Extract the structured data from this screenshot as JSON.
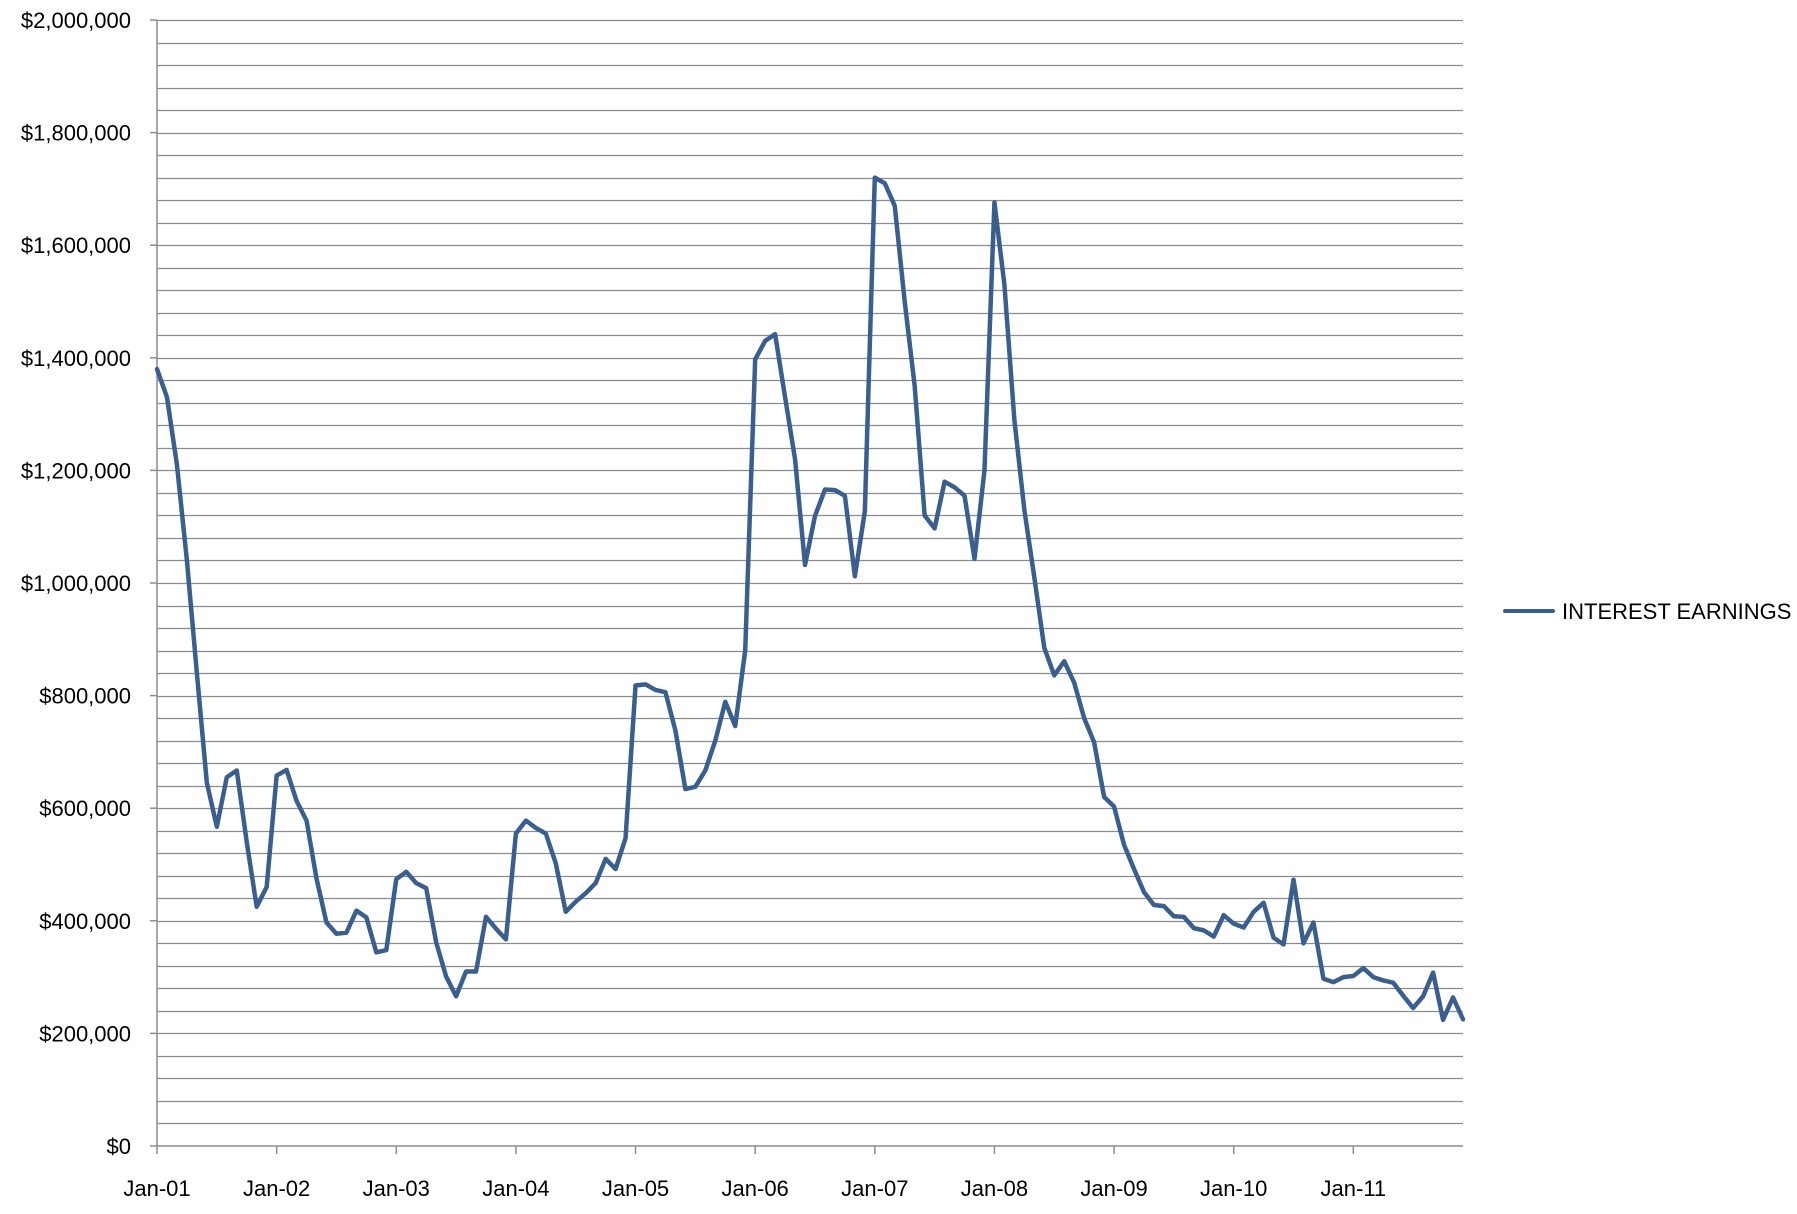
{
  "chart_data": {
    "type": "line",
    "title": "",
    "xlabel": "",
    "ylabel": "",
    "ylim": [
      0,
      2000000
    ],
    "y_ticks": [
      "$0",
      "$200,000",
      "$400,000",
      "$600,000",
      "$800,000",
      "$1,000,000",
      "$1,200,000",
      "$1,400,000",
      "$1,600,000",
      "$1,800,000",
      "$2,000,000"
    ],
    "y_tick_values": [
      0,
      200000,
      400000,
      600000,
      800000,
      1000000,
      1200000,
      1400000,
      1600000,
      1800000,
      2000000
    ],
    "x_ticks": [
      "Jan-01",
      "Jan-02",
      "Jan-03",
      "Jan-04",
      "Jan-05",
      "Jan-06",
      "Jan-07",
      "Jan-08",
      "Jan-09",
      "Jan-10",
      "Jan-11"
    ],
    "x_start": "Jan-01",
    "x_end": "Dec-11",
    "x_unit": "month",
    "grid": true,
    "grid_minor_step": 40000,
    "legend_position": "right",
    "colors": {
      "series": "#3a5f8f",
      "grid": "#8c8c8c",
      "axis": "#8c8c8c"
    },
    "series": [
      {
        "name": "INTEREST EARNINGS",
        "values": [
          1380000,
          1330000,
          1210000,
          1040000,
          840000,
          645000,
          567000,
          655000,
          667000,
          540000,
          425000,
          460000,
          658000,
          668000,
          613000,
          578000,
          475000,
          397000,
          377000,
          379000,
          418000,
          406000,
          344000,
          348000,
          474000,
          487000,
          467000,
          458000,
          362000,
          301000,
          266000,
          310000,
          310000,
          407000,
          386000,
          367000,
          555000,
          578000,
          565000,
          555000,
          502000,
          416000,
          434000,
          449000,
          467000,
          510000,
          492000,
          547000,
          818000,
          820000,
          810000,
          806000,
          738000,
          634000,
          638000,
          667000,
          720000,
          789000,
          746000,
          880000,
          1397000,
          1430000,
          1442000,
          1330000,
          1220000,
          1032000,
          1119000,
          1166000,
          1165000,
          1155000,
          1012000,
          1127000,
          1720000,
          1710000,
          1670000,
          1500000,
          1350000,
          1120000,
          1097000,
          1180000,
          1170000,
          1155000,
          1043000,
          1200000,
          1676000,
          1530000,
          1290000,
          1130000,
          1010000,
          885000,
          836000,
          861000,
          823000,
          760000,
          717000,
          620000,
          603000,
          535000,
          492000,
          451000,
          428000,
          426000,
          408000,
          407000,
          387000,
          383000,
          372000,
          410000,
          395000,
          388000,
          416000,
          432000,
          370000,
          358000,
          473000,
          360000,
          397000,
          297000,
          291000,
          300000,
          302000,
          316000,
          300000,
          294000,
          290000,
          267000,
          245000,
          266000,
          308000,
          224000,
          264000,
          225000
        ]
      }
    ]
  }
}
